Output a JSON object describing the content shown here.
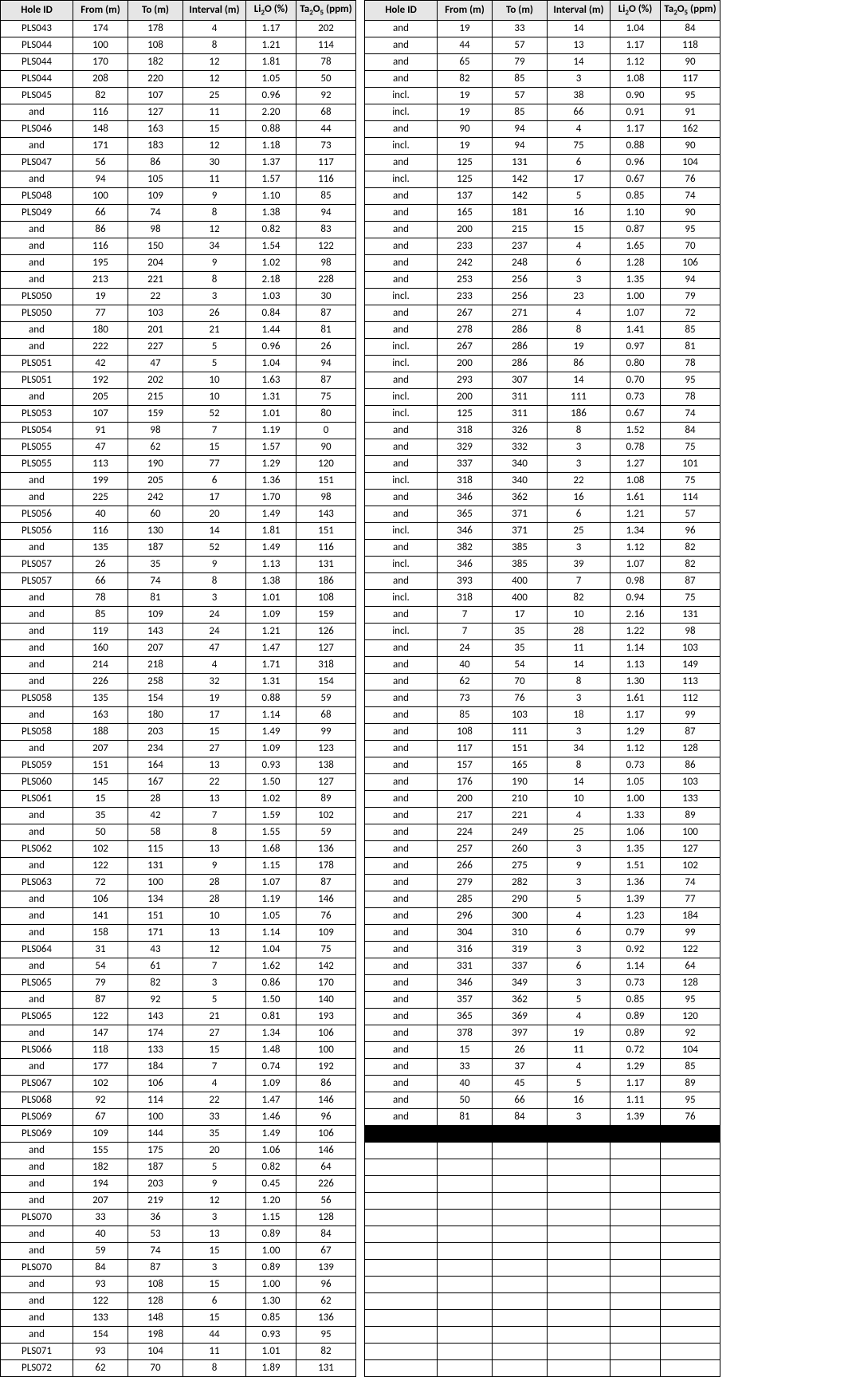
{
  "headers": {
    "hole": "Hole ID",
    "from": "From (m)",
    "to": "To (m)",
    "interval": "Interval (m)",
    "li": "Li",
    "li_sub": "2",
    "li_after": "O (%)",
    "ta": "Ta",
    "ta_sub": "2",
    "ta_after": "O",
    "ta_sub2": "5",
    "ta_unit": " (ppm)"
  },
  "style": {
    "header_bg": "#e6e6e6",
    "border": "#000000",
    "font": "Calibri, Arial, sans-serif",
    "fontsize_body": 13,
    "fontsize_header": 13
  },
  "left": [
    [
      "PLS043",
      "174",
      "178",
      "4",
      "1.17",
      "202"
    ],
    [
      "PLS044",
      "100",
      "108",
      "8",
      "1.21",
      "114"
    ],
    [
      "PLS044",
      "170",
      "182",
      "12",
      "1.81",
      "78"
    ],
    [
      "PLS044",
      "208",
      "220",
      "12",
      "1.05",
      "50"
    ],
    [
      "PLS045",
      "82",
      "107",
      "25",
      "0.96",
      "92"
    ],
    [
      "and",
      "116",
      "127",
      "11",
      "2.20",
      "68"
    ],
    [
      "PLS046",
      "148",
      "163",
      "15",
      "0.88",
      "44"
    ],
    [
      "and",
      "171",
      "183",
      "12",
      "1.18",
      "73"
    ],
    [
      "PLS047",
      "56",
      "86",
      "30",
      "1.37",
      "117"
    ],
    [
      "and",
      "94",
      "105",
      "11",
      "1.57",
      "116"
    ],
    [
      "PLS048",
      "100",
      "109",
      "9",
      "1.10",
      "85"
    ],
    [
      "PLS049",
      "66",
      "74",
      "8",
      "1.38",
      "94"
    ],
    [
      "and",
      "86",
      "98",
      "12",
      "0.82",
      "83"
    ],
    [
      "and",
      "116",
      "150",
      "34",
      "1.54",
      "122"
    ],
    [
      "and",
      "195",
      "204",
      "9",
      "1.02",
      "98"
    ],
    [
      "and",
      "213",
      "221",
      "8",
      "2.18",
      "228"
    ],
    [
      "PLS050",
      "19",
      "22",
      "3",
      "1.03",
      "30"
    ],
    [
      "PLS050",
      "77",
      "103",
      "26",
      "0.84",
      "87"
    ],
    [
      "and",
      "180",
      "201",
      "21",
      "1.44",
      "81"
    ],
    [
      "and",
      "222",
      "227",
      "5",
      "0.96",
      "26"
    ],
    [
      "PLS051",
      "42",
      "47",
      "5",
      "1.04",
      "94"
    ],
    [
      "PLS051",
      "192",
      "202",
      "10",
      "1.63",
      "87"
    ],
    [
      "and",
      "205",
      "215",
      "10",
      "1.31",
      "75"
    ],
    [
      "PLS053",
      "107",
      "159",
      "52",
      "1.01",
      "80"
    ],
    [
      "PLS054",
      "91",
      "98",
      "7",
      "1.19",
      "0"
    ],
    [
      "PLS055",
      "47",
      "62",
      "15",
      "1.57",
      "90"
    ],
    [
      "PLS055",
      "113",
      "190",
      "77",
      "1.29",
      "120"
    ],
    [
      "and",
      "199",
      "205",
      "6",
      "1.36",
      "151"
    ],
    [
      "and",
      "225",
      "242",
      "17",
      "1.70",
      "98"
    ],
    [
      "PLS056",
      "40",
      "60",
      "20",
      "1.49",
      "143"
    ],
    [
      "PLS056",
      "116",
      "130",
      "14",
      "1.81",
      "151"
    ],
    [
      "and",
      "135",
      "187",
      "52",
      "1.49",
      "116"
    ],
    [
      "PLS057",
      "26",
      "35",
      "9",
      "1.13",
      "131"
    ],
    [
      "PLS057",
      "66",
      "74",
      "8",
      "1.38",
      "186"
    ],
    [
      "and",
      "78",
      "81",
      "3",
      "1.01",
      "108"
    ],
    [
      "and",
      "85",
      "109",
      "24",
      "1.09",
      "159"
    ],
    [
      "and",
      "119",
      "143",
      "24",
      "1.21",
      "126"
    ],
    [
      "and",
      "160",
      "207",
      "47",
      "1.47",
      "127"
    ],
    [
      "and",
      "214",
      "218",
      "4",
      "1.71",
      "318"
    ],
    [
      "and",
      "226",
      "258",
      "32",
      "1.31",
      "154"
    ],
    [
      "PLS058",
      "135",
      "154",
      "19",
      "0.88",
      "59"
    ],
    [
      "and",
      "163",
      "180",
      "17",
      "1.14",
      "68"
    ],
    [
      "PLS058",
      "188",
      "203",
      "15",
      "1.49",
      "99"
    ],
    [
      "and",
      "207",
      "234",
      "27",
      "1.09",
      "123"
    ],
    [
      "PLS059",
      "151",
      "164",
      "13",
      "0.93",
      "138"
    ],
    [
      "PLS060",
      "145",
      "167",
      "22",
      "1.50",
      "127"
    ],
    [
      "PLS061",
      "15",
      "28",
      "13",
      "1.02",
      "89"
    ],
    [
      "and",
      "35",
      "42",
      "7",
      "1.59",
      "102"
    ],
    [
      "and",
      "50",
      "58",
      "8",
      "1.55",
      "59"
    ],
    [
      "PLS062",
      "102",
      "115",
      "13",
      "1.68",
      "136"
    ],
    [
      "and",
      "122",
      "131",
      "9",
      "1.15",
      "178"
    ],
    [
      "PLS063",
      "72",
      "100",
      "28",
      "1.07",
      "87"
    ],
    [
      "and",
      "106",
      "134",
      "28",
      "1.19",
      "146"
    ],
    [
      "and",
      "141",
      "151",
      "10",
      "1.05",
      "76"
    ],
    [
      "and",
      "158",
      "171",
      "13",
      "1.14",
      "109"
    ],
    [
      "PLS064",
      "31",
      "43",
      "12",
      "1.04",
      "75"
    ],
    [
      "and",
      "54",
      "61",
      "7",
      "1.62",
      "142"
    ],
    [
      "PLS065",
      "79",
      "82",
      "3",
      "0.86",
      "170"
    ],
    [
      "and",
      "87",
      "92",
      "5",
      "1.50",
      "140"
    ],
    [
      "PLS065",
      "122",
      "143",
      "21",
      "0.81",
      "193"
    ],
    [
      "and",
      "147",
      "174",
      "27",
      "1.34",
      "106"
    ],
    [
      "PLS066",
      "118",
      "133",
      "15",
      "1.48",
      "100"
    ],
    [
      "and",
      "177",
      "184",
      "7",
      "0.74",
      "192"
    ],
    [
      "PLS067",
      "102",
      "106",
      "4",
      "1.09",
      "86"
    ],
    [
      "PLS068",
      "92",
      "114",
      "22",
      "1.47",
      "146"
    ],
    [
      "PLS069",
      "67",
      "100",
      "33",
      "1.46",
      "96"
    ],
    [
      "PLS069",
      "109",
      "144",
      "35",
      "1.49",
      "106"
    ],
    [
      "and",
      "155",
      "175",
      "20",
      "1.06",
      "146"
    ],
    [
      "and",
      "182",
      "187",
      "5",
      "0.82",
      "64"
    ],
    [
      "and",
      "194",
      "203",
      "9",
      "0.45",
      "226"
    ],
    [
      "and",
      "207",
      "219",
      "12",
      "1.20",
      "56"
    ],
    [
      "PLS070",
      "33",
      "36",
      "3",
      "1.15",
      "128"
    ],
    [
      "and",
      "40",
      "53",
      "13",
      "0.89",
      "84"
    ],
    [
      "and",
      "59",
      "74",
      "15",
      "1.00",
      "67"
    ],
    [
      "PLS070",
      "84",
      "87",
      "3",
      "0.89",
      "139"
    ],
    [
      "and",
      "93",
      "108",
      "15",
      "1.00",
      "96"
    ],
    [
      "and",
      "122",
      "128",
      "6",
      "1.30",
      "62"
    ],
    [
      "and",
      "133",
      "148",
      "15",
      "0.85",
      "136"
    ],
    [
      "and",
      "154",
      "198",
      "44",
      "0.93",
      "95"
    ],
    [
      "PLS071",
      "93",
      "104",
      "11",
      "1.01",
      "82"
    ],
    [
      "PLS072",
      "62",
      "70",
      "8",
      "1.89",
      "131"
    ]
  ],
  "right": [
    [
      "and",
      "19",
      "33",
      "14",
      "1.04",
      "84"
    ],
    [
      "and",
      "44",
      "57",
      "13",
      "1.17",
      "118"
    ],
    [
      "and",
      "65",
      "79",
      "14",
      "1.12",
      "90"
    ],
    [
      "and",
      "82",
      "85",
      "3",
      "1.08",
      "117"
    ],
    [
      "incl.",
      "19",
      "57",
      "38",
      "0.90",
      "95"
    ],
    [
      "incl.",
      "19",
      "85",
      "66",
      "0.91",
      "91"
    ],
    [
      "and",
      "90",
      "94",
      "4",
      "1.17",
      "162"
    ],
    [
      "incl.",
      "19",
      "94",
      "75",
      "0.88",
      "90"
    ],
    [
      "and",
      "125",
      "131",
      "6",
      "0.96",
      "104"
    ],
    [
      "incl.",
      "125",
      "142",
      "17",
      "0.67",
      "76"
    ],
    [
      "and",
      "137",
      "142",
      "5",
      "0.85",
      "74"
    ],
    [
      "and",
      "165",
      "181",
      "16",
      "1.10",
      "90"
    ],
    [
      "and",
      "200",
      "215",
      "15",
      "0.87",
      "95"
    ],
    [
      "and",
      "233",
      "237",
      "4",
      "1.65",
      "70"
    ],
    [
      "and",
      "242",
      "248",
      "6",
      "1.28",
      "106"
    ],
    [
      "and",
      "253",
      "256",
      "3",
      "1.35",
      "94"
    ],
    [
      "incl.",
      "233",
      "256",
      "23",
      "1.00",
      "79"
    ],
    [
      "and",
      "267",
      "271",
      "4",
      "1.07",
      "72"
    ],
    [
      "and",
      "278",
      "286",
      "8",
      "1.41",
      "85"
    ],
    [
      "incl.",
      "267",
      "286",
      "19",
      "0.97",
      "81"
    ],
    [
      "incl.",
      "200",
      "286",
      "86",
      "0.80",
      "78"
    ],
    [
      "and",
      "293",
      "307",
      "14",
      "0.70",
      "95"
    ],
    [
      "incl.",
      "200",
      "311",
      "111",
      "0.73",
      "78"
    ],
    [
      "incl.",
      "125",
      "311",
      "186",
      "0.67",
      "74"
    ],
    [
      "and",
      "318",
      "326",
      "8",
      "1.52",
      "84"
    ],
    [
      "and",
      "329",
      "332",
      "3",
      "0.78",
      "75"
    ],
    [
      "and",
      "337",
      "340",
      "3",
      "1.27",
      "101"
    ],
    [
      "incl.",
      "318",
      "340",
      "22",
      "1.08",
      "75"
    ],
    [
      "and",
      "346",
      "362",
      "16",
      "1.61",
      "114"
    ],
    [
      "and",
      "365",
      "371",
      "6",
      "1.21",
      "57"
    ],
    [
      "incl.",
      "346",
      "371",
      "25",
      "1.34",
      "96"
    ],
    [
      "and",
      "382",
      "385",
      "3",
      "1.12",
      "82"
    ],
    [
      "incl.",
      "346",
      "385",
      "39",
      "1.07",
      "82"
    ],
    [
      "and",
      "393",
      "400",
      "7",
      "0.98",
      "87"
    ],
    [
      "incl.",
      "318",
      "400",
      "82",
      "0.94",
      "75"
    ],
    [
      "and",
      "7",
      "17",
      "10",
      "2.16",
      "131"
    ],
    [
      "incl.",
      "7",
      "35",
      "28",
      "1.22",
      "98"
    ],
    [
      "and",
      "24",
      "35",
      "11",
      "1.14",
      "103"
    ],
    [
      "and",
      "40",
      "54",
      "14",
      "1.13",
      "149"
    ],
    [
      "and",
      "62",
      "70",
      "8",
      "1.30",
      "113"
    ],
    [
      "and",
      "73",
      "76",
      "3",
      "1.61",
      "112"
    ],
    [
      "and",
      "85",
      "103",
      "18",
      "1.17",
      "99"
    ],
    [
      "and",
      "108",
      "111",
      "3",
      "1.29",
      "87"
    ],
    [
      "and",
      "117",
      "151",
      "34",
      "1.12",
      "128"
    ],
    [
      "and",
      "157",
      "165",
      "8",
      "0.73",
      "86"
    ],
    [
      "and",
      "176",
      "190",
      "14",
      "1.05",
      "103"
    ],
    [
      "and",
      "200",
      "210",
      "10",
      "1.00",
      "133"
    ],
    [
      "and",
      "217",
      "221",
      "4",
      "1.33",
      "89"
    ],
    [
      "and",
      "224",
      "249",
      "25",
      "1.06",
      "100"
    ],
    [
      "and",
      "257",
      "260",
      "3",
      "1.35",
      "127"
    ],
    [
      "and",
      "266",
      "275",
      "9",
      "1.51",
      "102"
    ],
    [
      "and",
      "279",
      "282",
      "3",
      "1.36",
      "74"
    ],
    [
      "and",
      "285",
      "290",
      "5",
      "1.39",
      "77"
    ],
    [
      "and",
      "296",
      "300",
      "4",
      "1.23",
      "184"
    ],
    [
      "and",
      "304",
      "310",
      "6",
      "0.79",
      "99"
    ],
    [
      "and",
      "316",
      "319",
      "3",
      "0.92",
      "122"
    ],
    [
      "and",
      "331",
      "337",
      "6",
      "1.14",
      "64"
    ],
    [
      "and",
      "346",
      "349",
      "3",
      "0.73",
      "128"
    ],
    [
      "and",
      "357",
      "362",
      "5",
      "0.85",
      "95"
    ],
    [
      "and",
      "365",
      "369",
      "4",
      "0.89",
      "120"
    ],
    [
      "and",
      "378",
      "397",
      "19",
      "0.89",
      "92"
    ],
    [
      "and",
      "15",
      "26",
      "11",
      "0.72",
      "104"
    ],
    [
      "and",
      "33",
      "37",
      "4",
      "1.29",
      "85"
    ],
    [
      "and",
      "40",
      "45",
      "5",
      "1.17",
      "89"
    ],
    [
      "and",
      "50",
      "66",
      "16",
      "1.11",
      "95"
    ],
    [
      "and",
      "81",
      "84",
      "3",
      "1.39",
      "76"
    ],
    [
      "BLACK",
      "",
      "",
      "",
      "",
      ""
    ],
    [
      "",
      "",
      "",
      "",
      "",
      ""
    ],
    [
      "",
      "",
      "",
      "",
      "",
      ""
    ],
    [
      "",
      "",
      "",
      "",
      "",
      ""
    ],
    [
      "",
      "",
      "",
      "",
      "",
      ""
    ],
    [
      "",
      "",
      "",
      "",
      "",
      ""
    ],
    [
      "",
      "",
      "",
      "",
      "",
      ""
    ],
    [
      "",
      "",
      "",
      "",
      "",
      ""
    ],
    [
      "",
      "",
      "",
      "",
      "",
      ""
    ],
    [
      "",
      "",
      "",
      "",
      "",
      ""
    ],
    [
      "",
      "",
      "",
      "",
      "",
      ""
    ],
    [
      "",
      "",
      "",
      "",
      "",
      ""
    ],
    [
      "",
      "",
      "",
      "",
      "",
      ""
    ],
    [
      "",
      "",
      "",
      "",
      "",
      ""
    ],
    [
      "",
      "",
      "",
      "",
      "",
      ""
    ]
  ]
}
